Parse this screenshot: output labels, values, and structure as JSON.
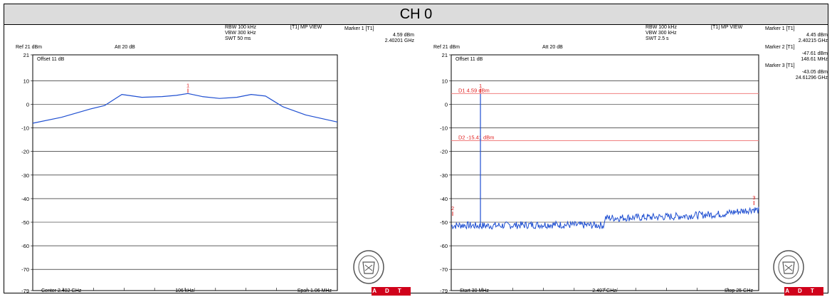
{
  "header": {
    "title": "CH 0"
  },
  "logos": {
    "seal_text": "BUREAU VERITAS 1828",
    "adt_text": "ADT"
  },
  "colors": {
    "trace": "#1f4fd1",
    "marker": "#e02020",
    "display_line": "#f08080",
    "grid": "#000000"
  },
  "panels": [
    {
      "id": "left",
      "ref": "Ref 21 dBm",
      "att": "Att  20 dB",
      "rbw": "RBW 100 kHz",
      "vbw": "VBW 300 kHz",
      "swt": "SWT 50 ms",
      "view": "[T1] MP VIEW",
      "offset": "Offset 11 dB",
      "markers": [
        {
          "title": "Marker 1 [T1]",
          "level": "4.59 dBm",
          "freq": "2.40201 GHz"
        }
      ],
      "bottom": {
        "left": "Center 2.402 GHz",
        "mid": "106 kHz/",
        "right": "Span 1.06 MHz"
      },
      "display_lines": []
    },
    {
      "id": "right",
      "ref": "Ref 21 dBm",
      "att": "Att  20 dB",
      "rbw": "RBW 100 kHz",
      "vbw": "VBW 300 kHz",
      "swt": "SWT 2.5 s",
      "view": "[T1] MP VIEW",
      "offset": "Offset 11 dB",
      "markers": [
        {
          "title": "Marker 1 [T1]",
          "level": "4.45 dBm",
          "freq": "2.40215 GHz"
        },
        {
          "title": "Marker 2 [T1]",
          "level": "-47.61 dBm",
          "freq": "148.61 MHz"
        },
        {
          "title": "Marker 3 [T1]",
          "level": "-43.05 dBm",
          "freq": "24.61296 GHz"
        }
      ],
      "bottom": {
        "left": "Start 30 MHz",
        "mid": "2.497 GHz/",
        "right": "Stop 25 GHz"
      },
      "display_lines": [
        {
          "label": "D1 4.59 dBm",
          "level": 4.59
        },
        {
          "label": "D2 -15.41 dBm",
          "level": -15.41
        }
      ]
    }
  ],
  "chart_data": [
    {
      "type": "line",
      "title": "",
      "xlabel": "",
      "ylabel": "",
      "x_unit": "GHz",
      "y_unit": "dBm",
      "ylim": [
        -79,
        21
      ],
      "xlim": [
        2.40147,
        2.40253
      ],
      "yticks": [
        21,
        10,
        0,
        -10,
        -20,
        -30,
        -40,
        -50,
        -60,
        -70,
        -79
      ],
      "grid": true,
      "series": [
        {
          "x": [
            2.40147,
            2.40157,
            2.40167,
            2.40172,
            2.40178,
            2.40185,
            2.40192,
            2.40197,
            2.40201,
            2.40206,
            2.40212,
            2.40218,
            2.40223,
            2.40228,
            2.40234,
            2.40242,
            2.40253
          ],
          "values": [
            -8,
            -5.5,
            -2,
            -0.5,
            4.2,
            3,
            3.3,
            3.8,
            4.59,
            3.3,
            2.5,
            3,
            4.2,
            3.5,
            -1,
            -4.5,
            -7.5
          ]
        }
      ],
      "markers": [
        {
          "label": "1",
          "x": 2.40201,
          "y": 4.59
        }
      ]
    },
    {
      "type": "line",
      "title": "",
      "xlabel": "",
      "ylabel": "",
      "x_unit": "GHz",
      "y_unit": "dBm",
      "ylim": [
        -79,
        21
      ],
      "xlim": [
        0.03,
        25
      ],
      "yticks": [
        21,
        10,
        0,
        -10,
        -20,
        -30,
        -40,
        -50,
        -60,
        -70,
        -79
      ],
      "grid": true,
      "series": [
        {
          "x": [
            0.03,
            1.0,
            2.0,
            2.40215,
            2.8,
            5.0,
            8.0,
            10.0,
            12.45,
            12.5,
            15.0,
            18.0,
            20.0,
            22.0,
            24.61296,
            25.0
          ],
          "values": [
            -51.5,
            -51.2,
            -51.5,
            4.45,
            -51.5,
            -51.3,
            -51.0,
            -51.2,
            -51.3,
            -48.2,
            -48.0,
            -47.6,
            -47.0,
            -46.5,
            -44.5,
            -45.0
          ]
        }
      ],
      "markers": [
        {
          "label": "1",
          "x": 2.40215,
          "y": 4.45
        },
        {
          "label": "2",
          "x": 0.14861,
          "y": -47.61
        },
        {
          "label": "3",
          "x": 24.61296,
          "y": -43.05
        }
      ]
    }
  ]
}
